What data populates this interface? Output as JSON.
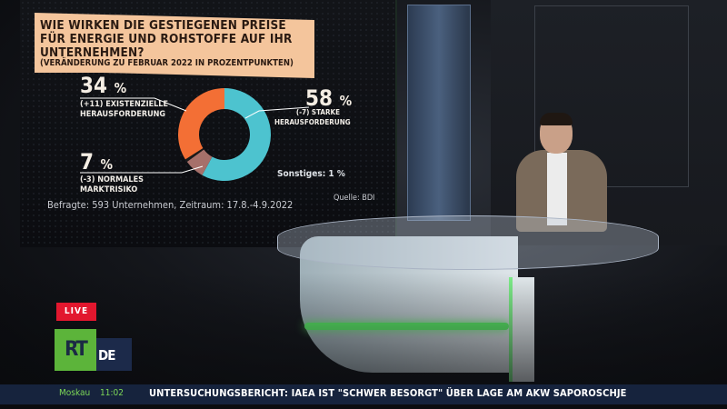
{
  "infographic": {
    "title": "WIE WIRKEN DIE GESTIEGENEN PREISE FÜR ENERGIE UND ROHSTOFFE AUF IHR UNTERNEHMEN?",
    "subtitle": "(VERÄNDERUNG ZU FEBRUAR 2022 IN PROZENTPUNKTEN)",
    "segments": [
      {
        "value": "58",
        "unit": "%",
        "change": "(-7) STARKE",
        "label": "HERAUSFORDERUNG",
        "color": "#4dc3cf"
      },
      {
        "value": "7",
        "unit": "%",
        "change": "(-3) NORMALES",
        "label": "MARKTRISIKO",
        "color": "#a6706a"
      },
      {
        "value": "34",
        "unit": "%",
        "change": "(+11) EXISTENZIELLE",
        "label": "HERAUSFORDERUNG",
        "color": "#f36f35"
      }
    ],
    "other": "Sonstiges: 1 %",
    "footer": "Befragte: 593 Unternehmen, Zeitraum: 17.8.-4.9.2022",
    "source": "Quelle: BDI"
  },
  "chart_data": {
    "type": "pie",
    "categories": [
      "Starke Herausforderung",
      "Normales Marktrisiko",
      "Sonstiges",
      "Existenzielle Herausforderung"
    ],
    "values": [
      58,
      7,
      1,
      34
    ],
    "changes": [
      -7,
      -3,
      null,
      11
    ],
    "colors": [
      "#4dc3cf",
      "#a6706a",
      "#1a1a1a",
      "#f36f35"
    ],
    "donut": true
  },
  "overlay": {
    "live": "LIVE",
    "logo_rt": "RT",
    "logo_de": "DE",
    "city": "Moskau",
    "time": "11:02",
    "headline": "UNTERSUCHUNGSBERICHT: IAEA IST \"SCHWER BESORGT\" ÜBER LAGE AM AKW SAPOROSCHJE"
  }
}
